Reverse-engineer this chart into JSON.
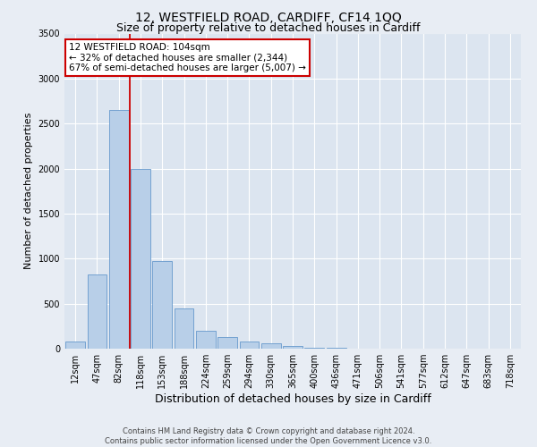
{
  "title": "12, WESTFIELD ROAD, CARDIFF, CF14 1QQ",
  "subtitle": "Size of property relative to detached houses in Cardiff",
  "xlabel": "Distribution of detached houses by size in Cardiff",
  "ylabel": "Number of detached properties",
  "categories": [
    "12sqm",
    "47sqm",
    "82sqm",
    "118sqm",
    "153sqm",
    "188sqm",
    "224sqm",
    "259sqm",
    "294sqm",
    "330sqm",
    "365sqm",
    "400sqm",
    "436sqm",
    "471sqm",
    "506sqm",
    "541sqm",
    "577sqm",
    "612sqm",
    "647sqm",
    "683sqm",
    "718sqm"
  ],
  "values": [
    75,
    825,
    2650,
    2000,
    975,
    450,
    200,
    125,
    75,
    60,
    30,
    10,
    5,
    2,
    1,
    0,
    0,
    0,
    0,
    0,
    0
  ],
  "bar_color": "#b8cfe8",
  "bar_edge_color": "#6699cc",
  "vline_color": "#cc0000",
  "vline_x_index": 2.5,
  "ylim": [
    0,
    3500
  ],
  "yticks": [
    0,
    500,
    1000,
    1500,
    2000,
    2500,
    3000,
    3500
  ],
  "annotation_line1": "12 WESTFIELD ROAD: 104sqm",
  "annotation_line2": "← 32% of detached houses are smaller (2,344)",
  "annotation_line3": "67% of semi-detached houses are larger (5,007) →",
  "annotation_box_color": "#ffffff",
  "annotation_box_edge": "#cc0000",
  "footer_line1": "Contains HM Land Registry data © Crown copyright and database right 2024.",
  "footer_line2": "Contains public sector information licensed under the Open Government Licence v3.0.",
  "bg_color": "#e8edf4",
  "plot_bg_color": "#dce5f0",
  "title_fontsize": 10,
  "subtitle_fontsize": 9,
  "tick_fontsize": 7,
  "ylabel_fontsize": 8,
  "xlabel_fontsize": 9,
  "annotation_fontsize": 7.5,
  "footer_fontsize": 6
}
